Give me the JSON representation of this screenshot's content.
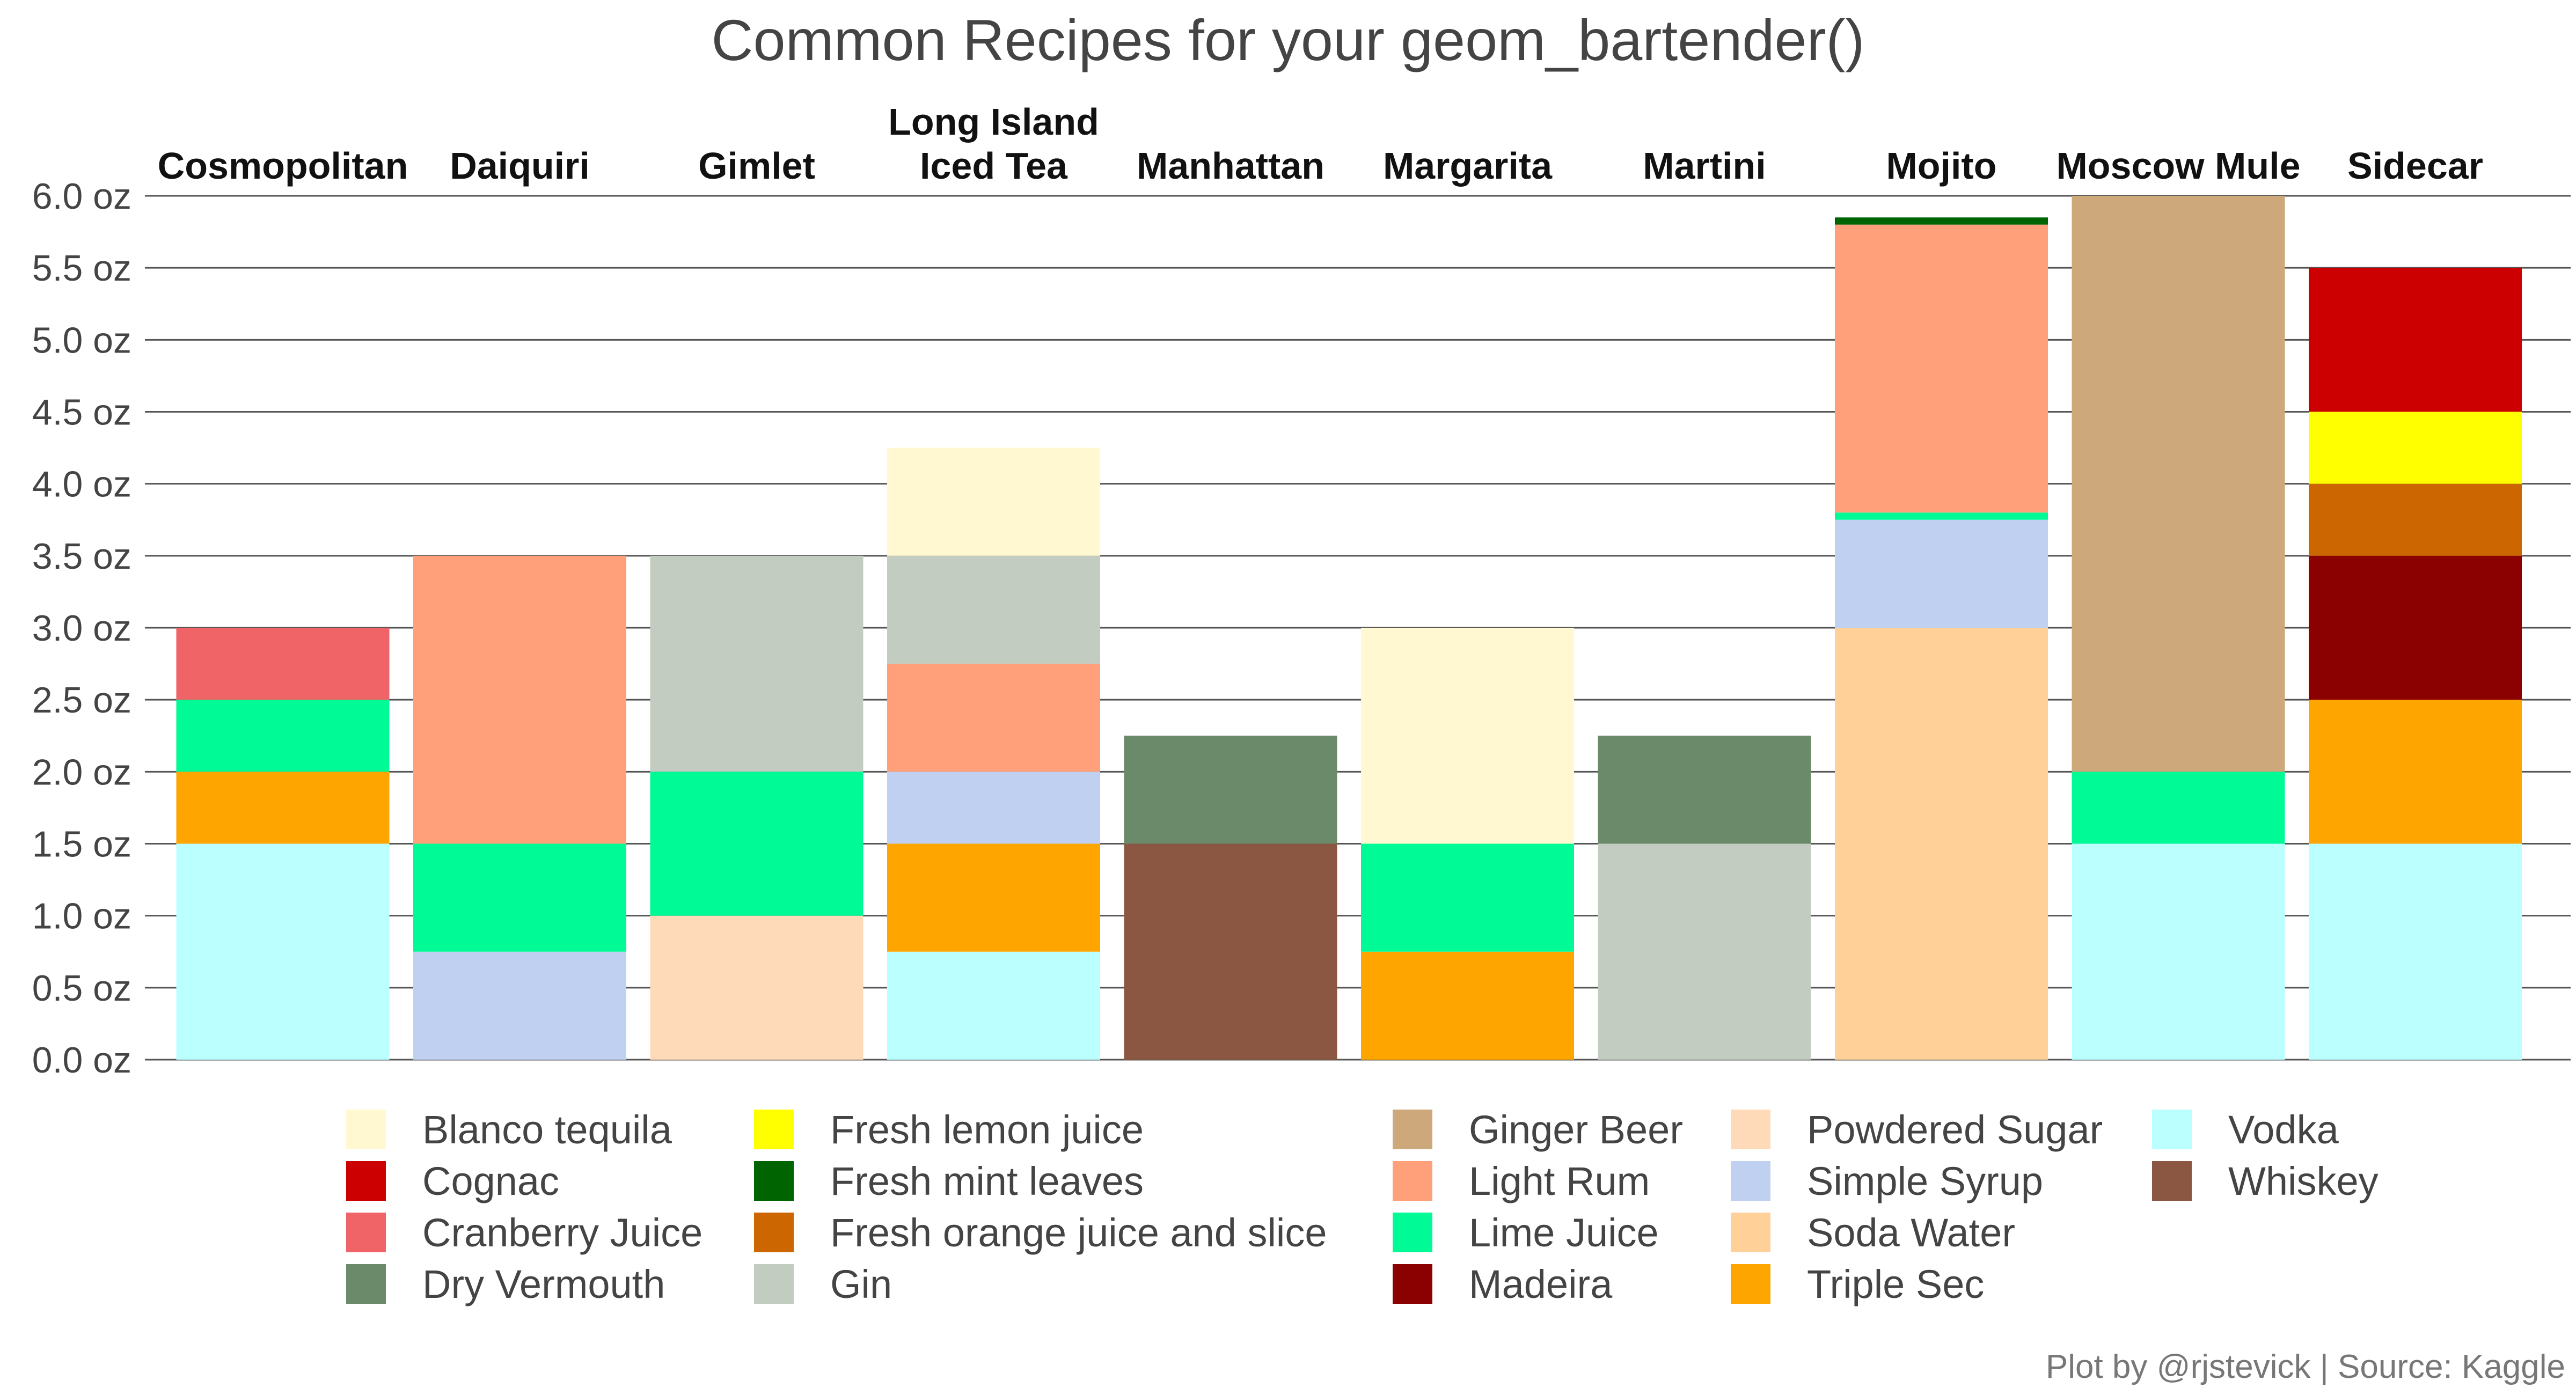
{
  "chart_data": {
    "type": "bar",
    "stacked": true,
    "title": "Common Recipes for your geom_bartender()",
    "caption": "Plot by @rjstevick | Source: Kaggle",
    "xlabel": "",
    "ylabel": "",
    "ylim": [
      0,
      6
    ],
    "y_ticks": [
      0,
      0.5,
      1.0,
      1.5,
      2.0,
      2.5,
      3.0,
      3.5,
      4.0,
      4.5,
      5.0,
      5.5,
      6.0
    ],
    "y_tick_labels": [
      "0.0 oz",
      "0.5 oz",
      "1.0 oz",
      "1.5 oz",
      "2.0 oz",
      "2.5 oz",
      "3.0 oz",
      "3.5 oz",
      "4.0 oz",
      "4.5 oz",
      "5.0 oz",
      "5.5 oz",
      "6.0 oz"
    ],
    "grid": true,
    "legend_position": "bottom",
    "categories": [
      {
        "name": "Cosmopolitan",
        "label_lines": [
          "Cosmopolitan"
        ]
      },
      {
        "name": "Daiquiri",
        "label_lines": [
          "Daiquiri"
        ]
      },
      {
        "name": "Gimlet",
        "label_lines": [
          "Gimlet"
        ]
      },
      {
        "name": "Long Island Iced Tea",
        "label_lines": [
          "Long Island",
          "Iced Tea"
        ]
      },
      {
        "name": "Manhattan",
        "label_lines": [
          "Manhattan"
        ]
      },
      {
        "name": "Margarita",
        "label_lines": [
          "Margarita"
        ]
      },
      {
        "name": "Martini",
        "label_lines": [
          "Martini"
        ]
      },
      {
        "name": "Mojito",
        "label_lines": [
          "Mojito"
        ]
      },
      {
        "name": "Moscow Mule",
        "label_lines": [
          "Moscow Mule"
        ]
      },
      {
        "name": "Sidecar",
        "label_lines": [
          "Sidecar"
        ]
      }
    ],
    "ingredients": [
      {
        "name": "Blanco tequila",
        "color": "#FFF8D0"
      },
      {
        "name": "Cognac",
        "color": "#CC0000"
      },
      {
        "name": "Cranberry Juice",
        "color": "#F06468"
      },
      {
        "name": "Dry Vermouth",
        "color": "#6A8A6A"
      },
      {
        "name": "Fresh lemon juice",
        "color": "#FFFF00"
      },
      {
        "name": "Fresh mint leaves",
        "color": "#006400"
      },
      {
        "name": "Fresh orange juice and slice",
        "color": "#CC6600"
      },
      {
        "name": "Gin",
        "color": "#C2CCC0"
      },
      {
        "name": "Ginger Beer",
        "color": "#CCA87A"
      },
      {
        "name": "Light Rum",
        "color": "#FFA07A"
      },
      {
        "name": "Lime Juice",
        "color": "#00FA96"
      },
      {
        "name": "Madeira",
        "color": "#8B0000"
      },
      {
        "name": "Powdered Sugar",
        "color": "#FFDAB9"
      },
      {
        "name": "Simple Syrup",
        "color": "#BFD0F0"
      },
      {
        "name": "Soda Water",
        "color": "#FFD098"
      },
      {
        "name": "Triple Sec",
        "color": "#FFA500"
      },
      {
        "name": "Vodka",
        "color": "#BBFFFF"
      },
      {
        "name": "Whiskey",
        "color": "#8B5742"
      }
    ],
    "stacks": [
      [
        {
          "ingredient": "Vodka",
          "value": 1.5
        },
        {
          "ingredient": "Triple Sec",
          "value": 0.5
        },
        {
          "ingredient": "Lime Juice",
          "value": 0.5
        },
        {
          "ingredient": "Cranberry Juice",
          "value": 0.5
        }
      ],
      [
        {
          "ingredient": "Simple Syrup",
          "value": 0.75
        },
        {
          "ingredient": "Lime Juice",
          "value": 0.75
        },
        {
          "ingredient": "Light Rum",
          "value": 2.0
        }
      ],
      [
        {
          "ingredient": "Powdered Sugar",
          "value": 1.0
        },
        {
          "ingredient": "Lime Juice",
          "value": 1.0
        },
        {
          "ingredient": "Gin",
          "value": 1.5
        }
      ],
      [
        {
          "ingredient": "Vodka",
          "value": 0.75
        },
        {
          "ingredient": "Triple Sec",
          "value": 0.75
        },
        {
          "ingredient": "Simple Syrup",
          "value": 0.5
        },
        {
          "ingredient": "Light Rum",
          "value": 0.75
        },
        {
          "ingredient": "Gin",
          "value": 0.75
        },
        {
          "ingredient": "Blanco tequila",
          "value": 0.75
        }
      ],
      [
        {
          "ingredient": "Whiskey",
          "value": 1.5
        },
        {
          "ingredient": "Dry Vermouth",
          "value": 0.75
        }
      ],
      [
        {
          "ingredient": "Triple Sec",
          "value": 0.75
        },
        {
          "ingredient": "Lime Juice",
          "value": 0.75
        },
        {
          "ingredient": "Blanco tequila",
          "value": 1.5
        }
      ],
      [
        {
          "ingredient": "Gin",
          "value": 1.5
        },
        {
          "ingredient": "Dry Vermouth",
          "value": 0.75
        }
      ],
      [
        {
          "ingredient": "Soda Water",
          "value": 3.0
        },
        {
          "ingredient": "Simple Syrup",
          "value": 0.75
        },
        {
          "ingredient": "Lime Juice",
          "value": 0.05
        },
        {
          "ingredient": "Light Rum",
          "value": 2.0
        },
        {
          "ingredient": "Fresh mint leaves",
          "value": 0.05
        }
      ],
      [
        {
          "ingredient": "Vodka",
          "value": 1.5
        },
        {
          "ingredient": "Lime Juice",
          "value": 0.5
        },
        {
          "ingredient": "Ginger Beer",
          "value": 4.0
        }
      ],
      [
        {
          "ingredient": "Vodka",
          "value": 1.5
        },
        {
          "ingredient": "Triple Sec",
          "value": 1.0
        },
        {
          "ingredient": "Madeira",
          "value": 1.0
        },
        {
          "ingredient": "Fresh orange juice and slice",
          "value": 0.5
        },
        {
          "ingredient": "Fresh lemon juice",
          "value": 0.5
        },
        {
          "ingredient": "Cognac",
          "value": 1.0
        }
      ]
    ]
  }
}
